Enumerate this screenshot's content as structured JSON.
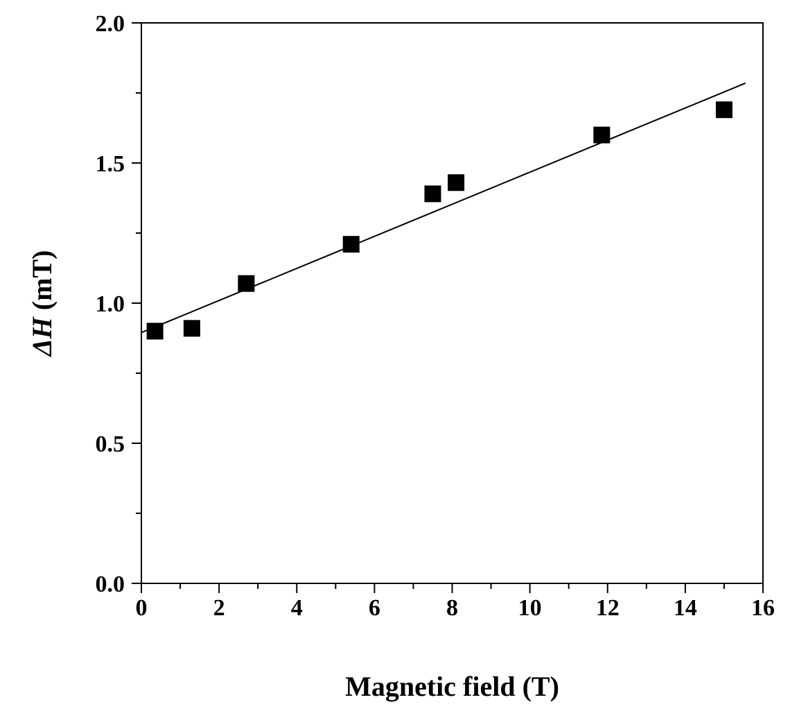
{
  "chart_data": {
    "type": "scatter",
    "title": "",
    "xlabel": "Magnetic field (T)",
    "ylabel_symbol": "ΔH",
    "ylabel_unit": " (mT)",
    "xlim": [
      0,
      16
    ],
    "ylim": [
      0,
      2.0
    ],
    "x_ticks": [
      0,
      2,
      4,
      6,
      8,
      10,
      12,
      14,
      16
    ],
    "x_tick_labels": [
      "0",
      "2",
      "4",
      "6",
      "8",
      "10",
      "12",
      "14",
      "16"
    ],
    "y_ticks": [
      0,
      0.5,
      1.0,
      1.5,
      2.0
    ],
    "y_tick_labels": [
      "0.0",
      "0.5",
      "1.0",
      "1.5",
      "2.0"
    ],
    "x_minor_step": 1,
    "y_minor_step": 0.25,
    "grid": false,
    "legend": "none",
    "series": [
      {
        "type": "scatter",
        "marker": "square",
        "color": "#000000",
        "x": [
          0.35,
          1.3,
          2.7,
          5.4,
          7.5,
          8.1,
          11.85,
          15.0
        ],
        "y": [
          0.9,
          0.91,
          1.07,
          1.21,
          1.39,
          1.43,
          1.6,
          1.69
        ]
      },
      {
        "type": "line",
        "color": "#000000",
        "x": [
          0.0,
          15.55
        ],
        "y": [
          0.895,
          1.785
        ]
      }
    ]
  }
}
